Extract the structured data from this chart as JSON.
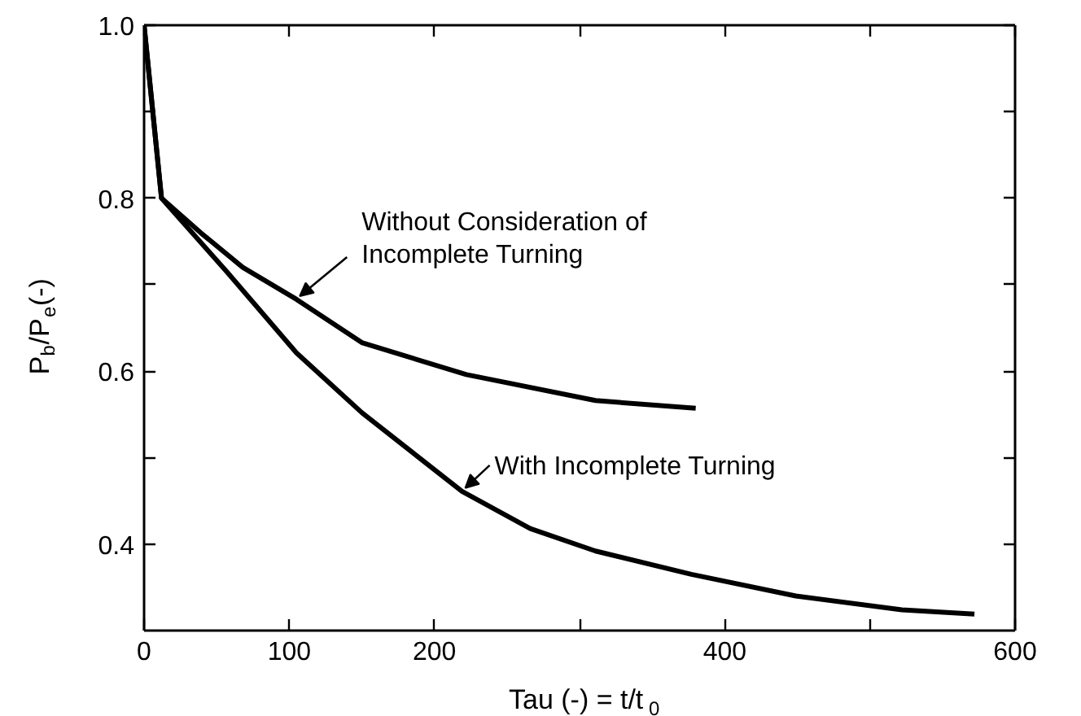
{
  "chart_data": {
    "type": "line",
    "xlabel": "Tau (-) = t/t$_{0}$",
    "ylabel": "P$_{b}$/P$_{e}$(-)",
    "xlim": [
      0,
      600
    ],
    "ylim": [
      0.3,
      1.0
    ],
    "xticks": [
      0,
      100,
      200,
      {
        "value": 300,
        "label": null
      },
      400,
      {
        "value": 500,
        "label": null
      },
      600
    ],
    "yticks": [
      0.4,
      {
        "value": 0.5,
        "label": null
      },
      0.6,
      {
        "value": 0.7,
        "label": null
      },
      0.8,
      {
        "value": 0.9,
        "label": null
      },
      {
        "value": 1.0,
        "label": "1.0"
      }
    ],
    "grid": false,
    "marker": "none",
    "line_style": "solid",
    "series": [
      {
        "color": "#000000",
        "x": [
          0,
          12,
          39,
          68,
          105,
          150,
          222,
          311,
          380
        ],
        "values": [
          1.0,
          0.8,
          0.76,
          0.72,
          0.683,
          0.633,
          0.596,
          0.566,
          0.557
        ]
      },
      {
        "color": "#000000",
        "x": [
          0,
          12,
          57,
          105,
          150,
          219,
          266,
          311,
          377,
          449,
          522,
          572
        ],
        "values": [
          1.0,
          0.8,
          0.715,
          0.621,
          0.552,
          0.461,
          0.418,
          0.392,
          0.365,
          0.34,
          0.324,
          0.319
        ]
      }
    ],
    "annotations": [
      {
        "text": "Without Consideration of\nIncomplete Turning",
        "x": 105,
        "y": 0.683
      },
      {
        "text": "With Incomplete Turning",
        "x": 219,
        "y": 0.461
      }
    ]
  }
}
